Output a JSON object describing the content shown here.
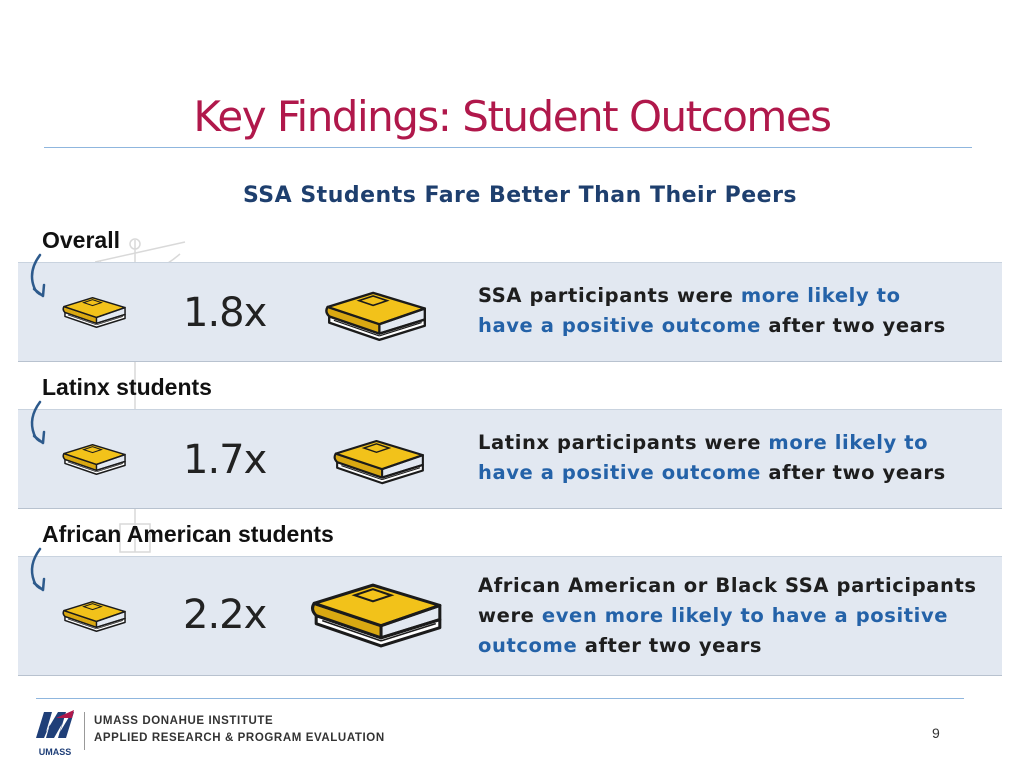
{
  "header": {
    "title": "Key Findings: Student Outcomes",
    "subtitle": "SSA Students Fare Better Than Their Peers"
  },
  "rows": [
    {
      "label": "Overall",
      "multiplier": "1.8x",
      "pre": "SSA participants were ",
      "highlight1": "more likely to",
      "highlight2": "have a positive outcome",
      "post": " after two years"
    },
    {
      "label": "Latinx students",
      "multiplier": "1.7x",
      "pre": "Latinx participants were ",
      "highlight1": "more likely to",
      "highlight2": "have a positive outcome",
      "post": " after two years"
    },
    {
      "label": "African American students",
      "multiplier": "2.2x",
      "line1": "African American or Black SSA participants",
      "pre": "were ",
      "highlight": "even more likely to have a positive",
      "highlight_end": "outcome",
      "post": " after two years"
    }
  ],
  "footer": {
    "logo_text": "UMASS",
    "org_line1": "UMASS DONAHUE INSTITUTE",
    "org_line2": "APPLIED RESEARCH & PROGRAM EVALUATION",
    "page_number": "9"
  },
  "colors": {
    "title": "#b0184b",
    "subtitle": "#1e3f6e",
    "highlight": "#2462a8",
    "band": "#e2e8f1",
    "book": "#f2c21a",
    "book_outline": "#1b1b1b",
    "arrow": "#2d5a8c"
  }
}
